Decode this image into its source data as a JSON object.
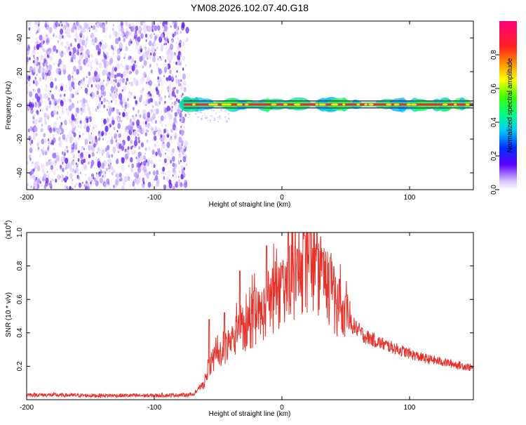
{
  "title": "YM08.2026.102.07.40.G18",
  "chart_data": [
    {
      "type": "heatmap",
      "xlabel": "Height of straight line (km)",
      "ylabel": "Frequency (Hz)",
      "xlim": [
        -200,
        150
      ],
      "ylim": [
        -50,
        50
      ],
      "xticks": [
        -200,
        -100,
        0,
        100
      ],
      "xtick_labels": [
        "-200",
        "-100",
        "0",
        "100"
      ],
      "yticks": [
        -40,
        -20,
        0,
        20,
        40
      ],
      "ytick_labels": [
        "-40",
        "-20",
        "0",
        "20",
        "40"
      ],
      "noise_region_x": [
        -200,
        -75
      ],
      "signal_line": {
        "x": [
          -77,
          150
        ],
        "frequency": 0.5
      },
      "colorbar": {
        "label": "Normalized spectral amplitude",
        "range": [
          0,
          1
        ],
        "ticks": [
          0,
          0.2,
          0.4,
          0.6,
          0.8
        ],
        "tick_labels": [
          "0.0",
          "0.2",
          "0.4",
          "0.6",
          "0.8"
        ]
      }
    },
    {
      "type": "line",
      "xlabel": "Height of straight line (km)",
      "ylabel": "SNR (10 * v/v)",
      "scale_label": "(x10",
      "scale_exponent": "4",
      "scale_close": ")",
      "xlim": [
        -200,
        150
      ],
      "ylim": [
        0,
        1.0
      ],
      "xticks": [
        -200,
        -100,
        0,
        100
      ],
      "xtick_labels": [
        "-200",
        "-100",
        "0",
        "100"
      ],
      "yticks": [
        0.2,
        0.4,
        0.6,
        0.8,
        1.0
      ],
      "ytick_labels": [
        "0.2",
        "0.4",
        "0.6",
        "0.8",
        "1.0"
      ],
      "color": "#e8312a",
      "envelope": [
        [
          -200,
          0.03
        ],
        [
          -150,
          0.025
        ],
        [
          -100,
          0.025
        ],
        [
          -70,
          0.03
        ],
        [
          -62,
          0.08
        ],
        [
          -55,
          0.22
        ],
        [
          -45,
          0.3
        ],
        [
          -35,
          0.38
        ],
        [
          -25,
          0.45
        ],
        [
          -15,
          0.52
        ],
        [
          -5,
          0.62
        ],
        [
          5,
          0.7
        ],
        [
          15,
          0.78
        ],
        [
          25,
          0.78
        ],
        [
          35,
          0.68
        ],
        [
          45,
          0.55
        ],
        [
          55,
          0.45
        ],
        [
          65,
          0.38
        ],
        [
          80,
          0.33
        ],
        [
          95,
          0.29
        ],
        [
          110,
          0.25
        ],
        [
          130,
          0.22
        ],
        [
          150,
          0.19
        ]
      ],
      "spikes": [
        [
          -57,
          0.48
        ],
        [
          -45,
          0.52
        ],
        [
          -33,
          0.77
        ],
        [
          -22,
          0.65
        ],
        [
          -12,
          0.92
        ],
        [
          0,
          0.8
        ],
        [
          5,
          1.0
        ],
        [
          12,
          0.9
        ],
        [
          18,
          0.98
        ],
        [
          22,
          1.0
        ],
        [
          28,
          0.9
        ],
        [
          32,
          0.88
        ],
        [
          38,
          0.85
        ],
        [
          45,
          0.72
        ],
        [
          50,
          0.62
        ]
      ]
    }
  ]
}
